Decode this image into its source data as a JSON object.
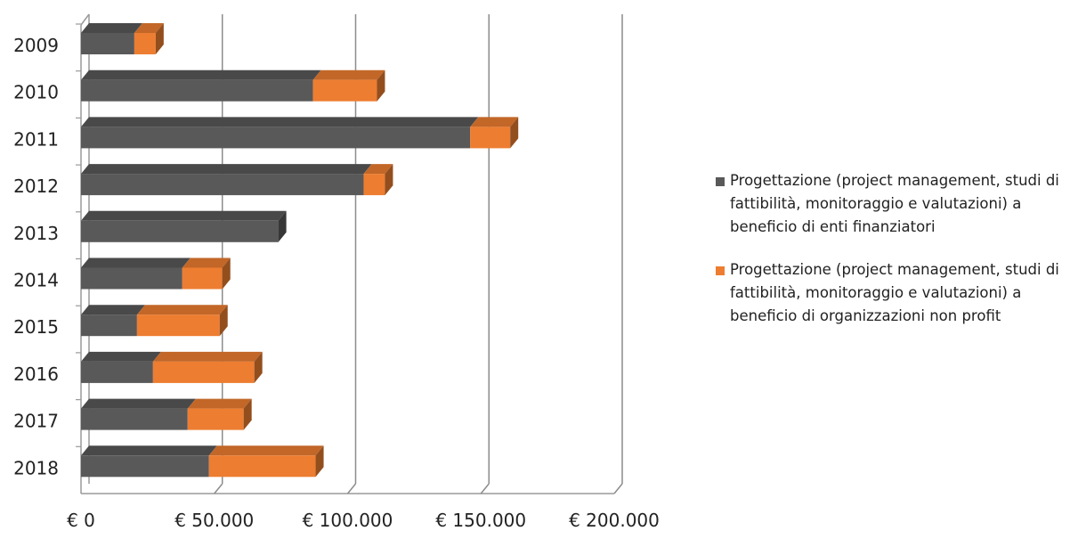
{
  "chart_data": {
    "type": "bar",
    "orientation": "horizontal",
    "stacked": true,
    "three_d": true,
    "categories": [
      "2009",
      "2010",
      "2011",
      "2012",
      "2013",
      "2014",
      "2015",
      "2016",
      "2017",
      "2018"
    ],
    "series": [
      {
        "name": "Progettazione (project management, studi di fattibilità, monitoraggio e valutazioni) a beneficio di enti finanziatori",
        "color": "#595959",
        "values": [
          20000,
          87000,
          146000,
          106000,
          74000,
          38000,
          21000,
          27000,
          40000,
          48000
        ]
      },
      {
        "name": "Progettazione (project management, studi di fattibilità, monitoraggio e valutazioni) a beneficio di organizzazioni non profit",
        "color": "#ED7D31",
        "values": [
          8000,
          24000,
          15000,
          8000,
          0,
          15000,
          31000,
          38000,
          21000,
          40000
        ]
      }
    ],
    "x_ticks": [
      "€ 0",
      "€ 50.000",
      "€ 100.000",
      "€ 150.000",
      "€ 200.000"
    ],
    "xlim": [
      0,
      200000
    ],
    "grid": true,
    "legend_position": "right"
  }
}
